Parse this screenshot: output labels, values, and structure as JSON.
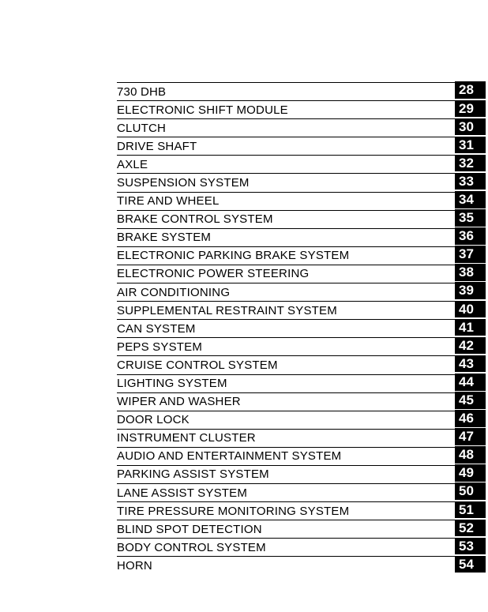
{
  "page": {
    "background_color": "#ffffff",
    "rule_color": "#000000",
    "badge_background_color": "#000000",
    "badge_text_color": "#ffffff"
  },
  "toc": {
    "items": [
      {
        "label": "730 DHB",
        "num": "28"
      },
      {
        "label": "ELECTRONIC SHIFT MODULE",
        "num": "29"
      },
      {
        "label": "CLUTCH",
        "num": "30"
      },
      {
        "label": "DRIVE SHAFT",
        "num": "31"
      },
      {
        "label": "AXLE",
        "num": "32"
      },
      {
        "label": "SUSPENSION SYSTEM",
        "num": "33"
      },
      {
        "label": "TIRE AND WHEEL",
        "num": "34"
      },
      {
        "label": "BRAKE CONTROL SYSTEM",
        "num": "35"
      },
      {
        "label": "BRAKE SYSTEM",
        "num": "36"
      },
      {
        "label": "ELECTRONIC PARKING BRAKE SYSTEM",
        "num": "37"
      },
      {
        "label": "ELECTRONIC POWER STEERING",
        "num": "38"
      },
      {
        "label": "AIR CONDITIONING",
        "num": "39"
      },
      {
        "label": "SUPPLEMENTAL RESTRAINT SYSTEM",
        "num": "40"
      },
      {
        "label": "CAN SYSTEM",
        "num": "41"
      },
      {
        "label": "PEPS SYSTEM",
        "num": "42"
      },
      {
        "label": "CRUISE CONTROL SYSTEM",
        "num": "43"
      },
      {
        "label": "LIGHTING SYSTEM",
        "num": "44"
      },
      {
        "label": "WIPER AND WASHER",
        "num": "45"
      },
      {
        "label": "DOOR LOCK",
        "num": "46"
      },
      {
        "label": "INSTRUMENT CLUSTER",
        "num": "47"
      },
      {
        "label": "AUDIO AND ENTERTAINMENT SYSTEM",
        "num": "48"
      },
      {
        "label": "PARKING ASSIST SYSTEM",
        "num": "49"
      },
      {
        "label": "LANE ASSIST SYSTEM",
        "num": "50"
      },
      {
        "label": "TIRE PRESSURE MONITORING SYSTEM",
        "num": "51"
      },
      {
        "label": "BLIND SPOT DETECTION",
        "num": "52"
      },
      {
        "label": "BODY CONTROL SYSTEM",
        "num": "53"
      },
      {
        "label": "HORN",
        "num": "54"
      }
    ]
  }
}
